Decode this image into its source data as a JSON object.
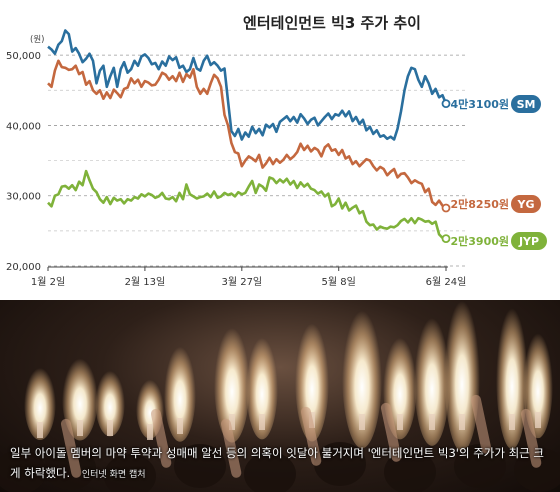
{
  "chart_data": {
    "type": "line",
    "title": "엔터테인먼트 빅3 주가 추이",
    "yunit": "(원)",
    "ylim": [
      20000,
      55000
    ],
    "yticks": [
      20000,
      30000,
      40000,
      50000
    ],
    "ytick_labels": [
      "20,000",
      "30,000",
      "40,000",
      "50,000"
    ],
    "xticks": [
      {
        "label": "1월 2일",
        "index": 0
      },
      {
        "label": "2월 13일",
        "index": 28
      },
      {
        "label": "3월 27일",
        "index": 56
      },
      {
        "label": "5월 8일",
        "index": 84
      },
      {
        "label": "6월 24일",
        "index": 115
      }
    ],
    "series": [
      {
        "name": "SM",
        "end_label": "4만3100원",
        "color": "#2a6f9e",
        "values": [
          51200,
          50800,
          50200,
          51500,
          52000,
          53500,
          53000,
          50500,
          51000,
          50200,
          49000,
          49500,
          50200,
          49200,
          46000,
          47800,
          48500,
          45500,
          47000,
          48200,
          45500,
          48000,
          49000,
          47500,
          48000,
          49200,
          48500,
          49800,
          50100,
          49600,
          48700,
          48900,
          48000,
          49100,
          48500,
          49800,
          49300,
          49700,
          48200,
          48500,
          47600,
          48000,
          49600,
          48100,
          47800,
          49200,
          49900,
          48600,
          49000,
          48500,
          47800,
          48100,
          43500,
          39200,
          38500,
          39500,
          38000,
          39000,
          38400,
          39800,
          38900,
          39500,
          38600,
          40100,
          39700,
          40200,
          39100,
          40500,
          40900,
          41300,
          40600,
          41200,
          40400,
          41600,
          41000,
          40200,
          40800,
          41100,
          40000,
          40600,
          41200,
          41700,
          40900,
          41600,
          41400,
          42100,
          41300,
          42000,
          40600,
          41200,
          40200,
          40800,
          39300,
          39800,
          38800,
          39300,
          38400,
          38600,
          38100,
          38400,
          38000,
          39500,
          42000,
          45000,
          47000,
          48200,
          48000,
          46500,
          45500,
          47000,
          46000,
          44500,
          45200,
          44000,
          44300,
          43100
        ]
      },
      {
        "name": "YG",
        "end_label": "2만8250원",
        "color": "#c4683f",
        "values": [
          46000,
          45500,
          47800,
          49200,
          48300,
          48200,
          47900,
          48000,
          48500,
          47300,
          47600,
          45800,
          46300,
          45000,
          44500,
          45000,
          43800,
          44700,
          43900,
          45100,
          44600,
          44000,
          45200,
          45400,
          46700,
          46000,
          46500,
          45500,
          46300,
          46100,
          45700,
          45800,
          46500,
          47500,
          47200,
          46500,
          47000,
          46300,
          47500,
          46200,
          47300,
          46800,
          48000,
          45500,
          44500,
          45200,
          44500,
          46000,
          47200,
          46700,
          45500,
          41500,
          40000,
          37500,
          36200,
          36000,
          34200,
          35000,
          35600,
          35300,
          34900,
          35800,
          34000,
          34600,
          35400,
          34500,
          35200,
          34700,
          35100,
          35800,
          35200,
          35600,
          36200,
          37400,
          36500,
          37100,
          36300,
          36800,
          36500,
          35600,
          36900,
          37300,
          36400,
          36600,
          35800,
          36500,
          35300,
          35600,
          34500,
          34900,
          34200,
          34700,
          35200,
          35000,
          34200,
          33600,
          34100,
          33800,
          32900,
          33400,
          33800,
          32600,
          33100,
          33200,
          32600,
          31800,
          32200,
          31900,
          31700,
          30500,
          31000,
          29100,
          28700,
          29300,
          28600,
          28250
        ]
      },
      {
        "name": "JYP",
        "end_label": "2만3900원",
        "color": "#7fb23a",
        "values": [
          29000,
          28500,
          30000,
          30200,
          31300,
          31400,
          31000,
          31500,
          30800,
          32000,
          31500,
          33500,
          32200,
          31000,
          30500,
          29500,
          29000,
          29800,
          28800,
          29700,
          29300,
          29500,
          28900,
          29500,
          29300,
          29800,
          29600,
          30200,
          29900,
          30300,
          30100,
          29700,
          29900,
          30400,
          29600,
          29500,
          29800,
          29200,
          30400,
          29500,
          31600,
          30200,
          29900,
          29600,
          29800,
          29900,
          30300,
          29800,
          30600,
          29700,
          29900,
          30400,
          30100,
          30300,
          29900,
          30500,
          30200,
          30400,
          31300,
          32100,
          30400,
          31600,
          31300,
          30700,
          32600,
          32400,
          31800,
          32300,
          31900,
          32400,
          31600,
          32100,
          31100,
          31900,
          31300,
          31700,
          31000,
          30800,
          30300,
          30600,
          29900,
          30300,
          28500,
          28800,
          29600,
          28200,
          29000,
          27900,
          28300,
          28600,
          27500,
          27800,
          26300,
          25800,
          25900,
          25200,
          25600,
          25400,
          25300,
          25600,
          25500,
          25800,
          26400,
          26700,
          26200,
          26800,
          26100,
          26800,
          26600,
          26300,
          26400,
          26000,
          26300,
          24500,
          24000,
          23900
        ]
      }
    ]
  },
  "photo": {
    "caption": "일부 아이돌 멤버의 마약 투약과 성매매 알선 등의 의혹이 잇달아 불거지며 '엔터테인먼트 빅3'의 주가가 최근 크게 하락했다.",
    "source": "인터넷 화면 캡처"
  }
}
